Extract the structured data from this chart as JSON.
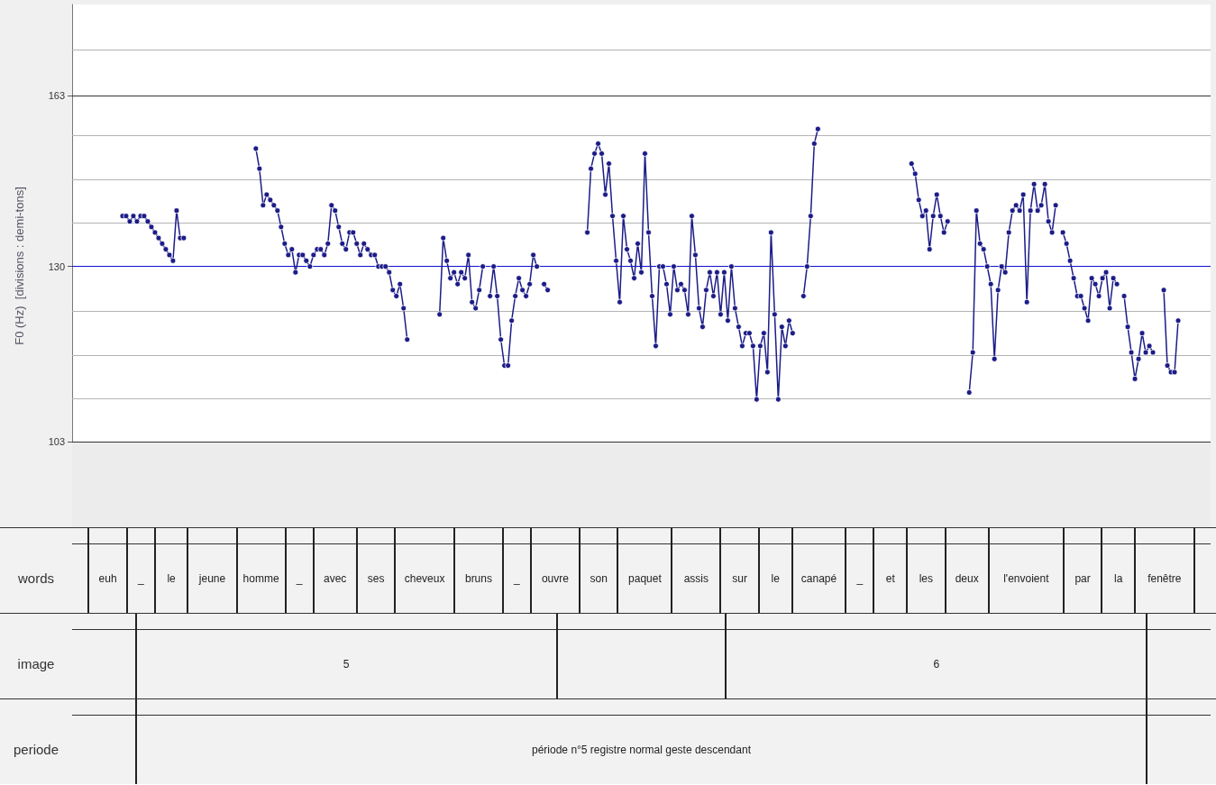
{
  "chart_data": [
    {
      "type": "line",
      "ylabel": "F0 (Hz)  [divisions : demi-tons]",
      "log": true,
      "grid": "y",
      "marker": "circle",
      "line_style": "solid",
      "tick_labels": "y",
      "ylim": [
        92,
        184
      ],
      "yticks": [
        103,
        {
          "value": 109.1,
          "label": null
        },
        {
          "value": 115.6,
          "label": null
        },
        {
          "value": 122.5,
          "label": null
        },
        130,
        {
          "value": 137.7,
          "label": null
        },
        {
          "value": 145.9,
          "label": null
        },
        {
          "value": 154.6,
          "label": null
        },
        163,
        {
          "value": 173.2,
          "label": null
        }
      ],
      "ref_lines": [
        {
          "axis": "y",
          "value": 130,
          "label": null,
          "color": "#1010d0"
        }
      ],
      "bands": [
        {
          "axis": "y",
          "from": 92,
          "to": 103,
          "label": null,
          "color": "#ececec"
        }
      ],
      "categories": [
        null,
        null,
        null,
        null,
        null,
        null,
        null,
        null,
        null,
        null,
        null,
        null,
        null,
        null,
        null,
        null,
        null,
        null,
        null,
        null,
        null,
        null,
        null,
        null,
        null,
        null,
        null,
        null,
        null,
        null,
        null,
        null,
        null,
        null,
        null,
        null,
        null,
        null,
        null,
        null,
        null,
        null,
        null,
        null,
        null,
        null,
        null,
        null,
        null,
        null,
        null,
        null,
        null,
        null,
        null,
        null,
        null,
        null,
        null,
        null,
        null,
        null,
        null,
        null,
        null,
        null,
        null,
        null,
        null,
        null,
        null,
        null,
        null,
        null,
        null,
        null,
        null,
        null,
        null,
        null,
        null,
        null,
        null,
        null,
        null,
        null,
        null,
        null,
        null,
        null,
        null,
        null,
        null,
        null,
        null,
        null,
        null,
        null,
        null,
        null,
        null,
        null,
        null,
        null,
        null,
        null,
        null,
        null,
        null,
        null,
        null,
        null,
        null,
        null,
        null,
        null,
        null,
        null,
        null,
        null,
        null,
        null,
        null,
        null,
        null,
        null,
        null,
        null,
        null,
        null,
        null,
        null,
        null,
        null,
        null,
        null,
        null,
        null,
        null,
        null,
        null,
        null,
        null,
        null,
        null,
        null,
        null,
        null,
        null,
        null,
        null,
        null,
        null,
        null,
        null,
        null,
        null,
        null,
        null,
        null,
        null,
        null,
        null,
        null,
        null,
        null,
        null,
        null,
        null,
        null,
        null,
        null,
        null,
        null,
        null,
        null,
        null,
        null,
        null,
        null,
        null,
        null,
        null,
        null,
        null,
        null,
        null,
        null,
        null,
        null,
        null,
        null,
        null,
        null,
        null,
        null,
        null,
        null,
        null,
        null,
        null,
        null,
        null,
        null,
        null,
        null,
        null,
        null,
        null,
        null,
        null,
        null,
        null,
        null,
        null,
        null,
        null,
        null,
        null,
        null,
        null,
        null,
        null,
        null,
        null,
        null,
        null,
        null,
        null,
        null,
        null,
        null,
        null,
        null,
        null,
        null,
        null,
        null,
        null,
        null,
        null,
        null,
        null,
        null,
        null,
        null,
        null,
        null,
        null,
        null,
        null,
        null,
        null,
        null,
        null,
        null,
        null,
        null,
        null,
        null,
        null,
        null,
        null,
        null,
        null,
        null,
        null,
        null,
        null,
        null,
        null,
        null,
        null,
        null,
        null,
        null,
        null,
        null,
        null,
        null,
        null,
        null,
        null,
        null,
        null,
        null,
        null,
        null,
        null,
        null,
        null,
        null,
        null,
        null,
        null,
        null,
        null,
        null,
        null,
        null,
        null,
        null,
        null,
        null,
        null,
        null,
        null,
        null,
        null,
        null,
        null,
        null,
        null,
        null,
        null,
        null,
        null
      ],
      "series": [
        {
          "color": "#1c1c88",
          "values": [
            null,
            null,
            null,
            null,
            null,
            null,
            null,
            null,
            null,
            null,
            null,
            null,
            null,
            null,
            139,
            139,
            138,
            139,
            138,
            139,
            139,
            138,
            137,
            136,
            135,
            134,
            133,
            132,
            131,
            140,
            135,
            135,
            null,
            null,
            null,
            null,
            null,
            null,
            null,
            null,
            null,
            null,
            null,
            null,
            null,
            null,
            null,
            null,
            null,
            null,
            null,
            152,
            148,
            141,
            143,
            142,
            141,
            140,
            137,
            134,
            132,
            133,
            129,
            132,
            132,
            131,
            130,
            132,
            133,
            133,
            132,
            134,
            141,
            140,
            137,
            134,
            133,
            136,
            136,
            134,
            132,
            134,
            133,
            132,
            132,
            130,
            130,
            130,
            129,
            126,
            125,
            127,
            123,
            118,
            null,
            null,
            null,
            null,
            null,
            null,
            null,
            null,
            122,
            135,
            131,
            128,
            129,
            127,
            129,
            128,
            132,
            124,
            123,
            126,
            130,
            null,
            125,
            130,
            125,
            118,
            114,
            114,
            121,
            125,
            128,
            126,
            125,
            127,
            132,
            130,
            null,
            127,
            126,
            null,
            null,
            null,
            null,
            null,
            null,
            null,
            null,
            null,
            null,
            136,
            148,
            151,
            153,
            151,
            143,
            149,
            139,
            131,
            124,
            139,
            133,
            131,
            128,
            134,
            129,
            151,
            136,
            125,
            117,
            130,
            130,
            127,
            122,
            130,
            126,
            127,
            126,
            122,
            139,
            132,
            123,
            120,
            126,
            129,
            125,
            129,
            122,
            129,
            121,
            130,
            123,
            120,
            117,
            119,
            119,
            117,
            109,
            117,
            119,
            113,
            136,
            122,
            109,
            120,
            117,
            121,
            119,
            null,
            null,
            125,
            130,
            139,
            153,
            156,
            null,
            null,
            null,
            null,
            null,
            null,
            null,
            null,
            null,
            null,
            null,
            null,
            null,
            null,
            null,
            null,
            null,
            null,
            null,
            null,
            null,
            null,
            null,
            null,
            null,
            149,
            147,
            142,
            139,
            140,
            133,
            139,
            143,
            139,
            136,
            138,
            null,
            null,
            null,
            null,
            null,
            110,
            116,
            140,
            134,
            133,
            130,
            127,
            115,
            126,
            130,
            129,
            136,
            140,
            141,
            140,
            143,
            124,
            140,
            145,
            140,
            141,
            145,
            138,
            136,
            141,
            null,
            136,
            134,
            131,
            128,
            125,
            125,
            123,
            121,
            128,
            127,
            125,
            128,
            129,
            123,
            128,
            127,
            null,
            125,
            120,
            116,
            112,
            115,
            119,
            116,
            117,
            116,
            null,
            null,
            126,
            114,
            113,
            113,
            121,
            null,
            null,
            null,
            null,
            null,
            null,
            null,
            null,
            null
          ]
        }
      ]
    },
    {
      "type": "other",
      "ylabel": "words",
      "categories": [
        null,
        "euh",
        "_",
        "le",
        "jeune",
        "homme",
        "_",
        "avec",
        "ses",
        "cheveux",
        "bruns",
        "_",
        "ouvre",
        "son",
        "paquet",
        "assis",
        "sur",
        "le",
        "canapé",
        "_",
        "et",
        "les",
        "deux",
        "l'envoient",
        "par",
        "la",
        "fenêtre",
        null
      ]
    },
    {
      "type": "other",
      "ylabel": "image",
      "categories": [
        null,
        "5",
        null,
        "6",
        null
      ]
    },
    {
      "type": "other",
      "ylabel": "periode",
      "categories": [
        null,
        "période n°5 registre normal geste descendant",
        null
      ]
    }
  ]
}
